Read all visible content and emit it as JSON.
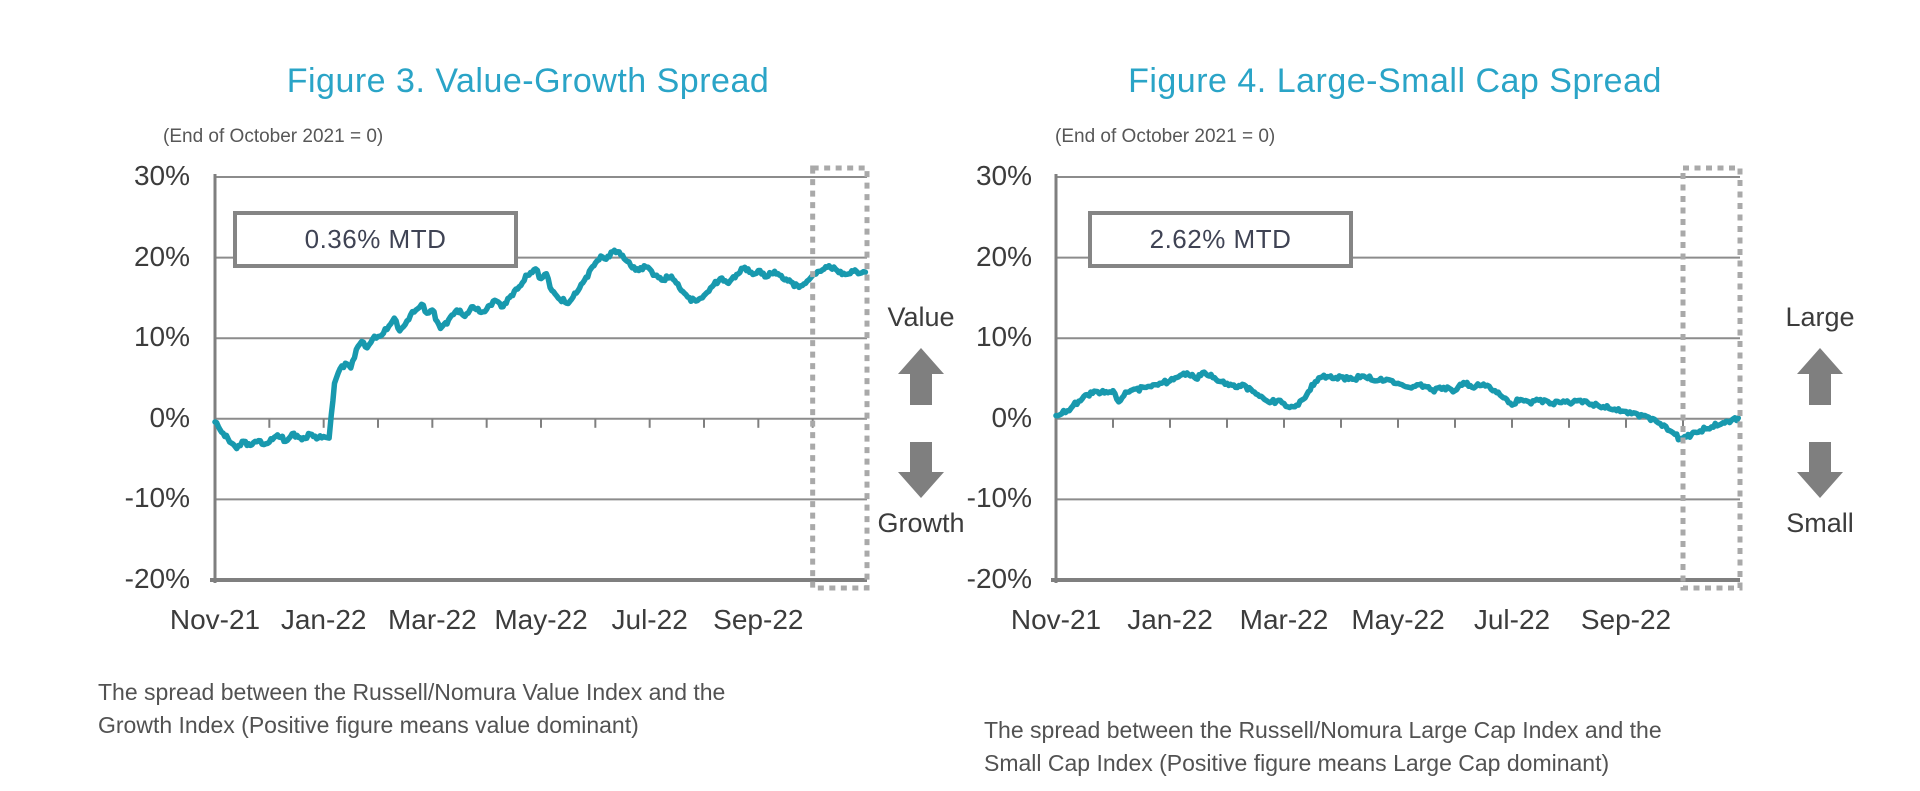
{
  "page": {
    "background": "#ffffff"
  },
  "chart_data": [
    {
      "type": "line",
      "title": "Figure 3. Value-Growth Spread",
      "subtitle": "(End of October 2021 = 0)",
      "annotation": "0.36% MTD",
      "arrow_up_label": "Value",
      "arrow_down_label": "Growth",
      "caption_lines": [
        "The spread between the Russell/Nomura Value Index and the",
        "Growth Index (Positive figure means value dominant)"
      ],
      "ylim": [
        -20,
        30
      ],
      "y_tick_values": [
        30,
        20,
        10,
        0,
        -10,
        -20
      ],
      "y_tick_labels": [
        "30%",
        "20%",
        "10%",
        "0%",
        "-10%",
        "-20%"
      ],
      "x_tick_labels": [
        "Nov-21",
        "Jan-22",
        "Mar-22",
        "May-22",
        "Jul-22",
        "Sep-22"
      ],
      "x_axis_unit": "months since end of October 2021",
      "x_range_months": [
        0,
        12
      ],
      "grid": "horizontal",
      "legend": "none",
      "highlight_window_months": [
        11,
        12
      ],
      "highlight_meaning": "October 2022 month-to-date",
      "line_color": "#1899AE",
      "series": [
        {
          "name": "Value minus Growth cumulative spread (%)",
          "color": "#1899AE",
          "points_month_value": [
            [
              0,
              -0.4
            ],
            [
              0.15,
              -1.8
            ],
            [
              0.3,
              -3.0
            ],
            [
              0.4,
              -3.7
            ],
            [
              0.5,
              -2.8
            ],
            [
              0.65,
              -3.3
            ],
            [
              0.8,
              -2.7
            ],
            [
              0.9,
              -3.2
            ],
            [
              1.0,
              -2.9
            ],
            [
              1.15,
              -2.0
            ],
            [
              1.3,
              -2.8
            ],
            [
              1.45,
              -1.8
            ],
            [
              1.6,
              -2.6
            ],
            [
              1.75,
              -1.9
            ],
            [
              1.9,
              -2.4
            ],
            [
              2.0,
              -2.2
            ],
            [
              2.1,
              -2.4
            ],
            [
              2.14,
              0.5
            ],
            [
              2.2,
              4.4
            ],
            [
              2.3,
              6.2
            ],
            [
              2.4,
              6.9
            ],
            [
              2.5,
              6.3
            ],
            [
              2.6,
              8.6
            ],
            [
              2.7,
              9.6
            ],
            [
              2.8,
              8.8
            ],
            [
              2.9,
              9.9
            ],
            [
              3.0,
              10.2
            ],
            [
              3.1,
              10.6
            ],
            [
              3.2,
              11.5
            ],
            [
              3.3,
              12.5
            ],
            [
              3.4,
              10.9
            ],
            [
              3.5,
              11.7
            ],
            [
              3.6,
              12.9
            ],
            [
              3.7,
              13.5
            ],
            [
              3.8,
              14.2
            ],
            [
              3.9,
              13.1
            ],
            [
              4.0,
              13.5
            ],
            [
              4.15,
              11.2
            ],
            [
              4.3,
              12.3
            ],
            [
              4.45,
              13.5
            ],
            [
              4.6,
              12.7
            ],
            [
              4.75,
              13.9
            ],
            [
              4.9,
              13.2
            ],
            [
              5.0,
              13.6
            ],
            [
              5.15,
              14.7
            ],
            [
              5.3,
              13.9
            ],
            [
              5.45,
              15.3
            ],
            [
              5.6,
              16.4
            ],
            [
              5.75,
              17.8
            ],
            [
              5.9,
              18.6
            ],
            [
              6.0,
              17.4
            ],
            [
              6.1,
              18.0
            ],
            [
              6.2,
              15.9
            ],
            [
              6.35,
              14.8
            ],
            [
              6.5,
              14.3
            ],
            [
              6.65,
              15.6
            ],
            [
              6.8,
              17.2
            ],
            [
              6.95,
              18.9
            ],
            [
              7.0,
              19.3
            ],
            [
              7.1,
              20.2
            ],
            [
              7.2,
              19.8
            ],
            [
              7.35,
              20.9
            ],
            [
              7.5,
              20.3
            ],
            [
              7.65,
              19.0
            ],
            [
              7.8,
              18.4
            ],
            [
              7.9,
              19.0
            ],
            [
              8.0,
              18.6
            ],
            [
              8.1,
              17.8
            ],
            [
              8.25,
              17.2
            ],
            [
              8.4,
              17.7
            ],
            [
              8.55,
              16.2
            ],
            [
              8.7,
              15.1
            ],
            [
              8.85,
              14.6
            ],
            [
              9.0,
              15.3
            ],
            [
              9.15,
              16.4
            ],
            [
              9.3,
              17.4
            ],
            [
              9.45,
              16.8
            ],
            [
              9.6,
              17.9
            ],
            [
              9.75,
              18.8
            ],
            [
              9.9,
              17.9
            ],
            [
              10.0,
              18.4
            ],
            [
              10.15,
              17.6
            ],
            [
              10.3,
              18.3
            ],
            [
              10.45,
              17.4
            ],
            [
              10.6,
              17.0
            ],
            [
              10.75,
              16.3
            ],
            [
              10.9,
              17.1
            ],
            [
              11.0,
              17.8
            ],
            [
              11.15,
              18.3
            ],
            [
              11.3,
              19.0
            ],
            [
              11.45,
              18.4
            ],
            [
              11.6,
              17.9
            ],
            [
              11.75,
              18.3
            ],
            [
              11.9,
              18.1
            ],
            [
              11.97,
              18.2
            ]
          ]
        }
      ]
    },
    {
      "type": "line",
      "title": "Figure 4. Large-Small Cap Spread",
      "subtitle": "(End of October 2021 = 0)",
      "annotation": "2.62% MTD",
      "arrow_up_label": "Large",
      "arrow_down_label": "Small",
      "caption_lines": [
        "The spread between the Russell/Nomura Large Cap Index and the",
        "Small Cap Index (Positive figure means Large Cap dominant)"
      ],
      "ylim": [
        -20,
        30
      ],
      "y_tick_values": [
        30,
        20,
        10,
        0,
        -10,
        -20
      ],
      "y_tick_labels": [
        "30%",
        "20%",
        "10%",
        "0%",
        "-10%",
        "-20%"
      ],
      "x_tick_labels": [
        "Nov-21",
        "Jan-22",
        "Mar-22",
        "May-22",
        "Jul-22",
        "Sep-22"
      ],
      "x_axis_unit": "months since end of October 2021",
      "x_range_months": [
        0,
        12
      ],
      "grid": "horizontal",
      "legend": "none",
      "highlight_window_months": [
        11,
        12
      ],
      "highlight_meaning": "October 2022 month-to-date",
      "line_color": "#1899AE",
      "series": [
        {
          "name": "Large Cap minus Small Cap cumulative spread (%)",
          "color": "#1899AE",
          "points_month_value": [
            [
              0,
              0.4
            ],
            [
              0.2,
              1.0
            ],
            [
              0.4,
              2.2
            ],
            [
              0.55,
              3.0
            ],
            [
              0.7,
              3.4
            ],
            [
              0.85,
              3.2
            ],
            [
              1.0,
              3.5
            ],
            [
              1.1,
              2.1
            ],
            [
              1.25,
              3.3
            ],
            [
              1.4,
              3.7
            ],
            [
              1.55,
              3.9
            ],
            [
              1.7,
              4.2
            ],
            [
              1.85,
              4.4
            ],
            [
              2.0,
              4.7
            ],
            [
              2.15,
              5.2
            ],
            [
              2.3,
              5.7
            ],
            [
              2.45,
              5.0
            ],
            [
              2.6,
              5.8
            ],
            [
              2.75,
              5.1
            ],
            [
              2.9,
              4.6
            ],
            [
              3.0,
              4.4
            ],
            [
              3.15,
              3.9
            ],
            [
              3.3,
              4.2
            ],
            [
              3.45,
              3.4
            ],
            [
              3.6,
              2.8
            ],
            [
              3.75,
              2.0
            ],
            [
              3.9,
              2.3
            ],
            [
              4.0,
              1.9
            ],
            [
              4.1,
              1.4
            ],
            [
              4.25,
              1.7
            ],
            [
              4.4,
              3.0
            ],
            [
              4.55,
              4.6
            ],
            [
              4.7,
              5.4
            ],
            [
              4.85,
              5.0
            ],
            [
              5.0,
              5.2
            ],
            [
              5.2,
              4.9
            ],
            [
              5.4,
              5.3
            ],
            [
              5.6,
              4.7
            ],
            [
              5.8,
              4.9
            ],
            [
              6.0,
              4.4
            ],
            [
              6.2,
              3.9
            ],
            [
              6.4,
              4.3
            ],
            [
              6.6,
              3.6
            ],
            [
              6.8,
              3.9
            ],
            [
              7.0,
              3.5
            ],
            [
              7.15,
              4.5
            ],
            [
              7.3,
              3.9
            ],
            [
              7.5,
              4.3
            ],
            [
              7.7,
              3.5
            ],
            [
              7.85,
              2.6
            ],
            [
              8.0,
              1.7
            ],
            [
              8.15,
              2.4
            ],
            [
              8.3,
              2.1
            ],
            [
              8.5,
              2.4
            ],
            [
              8.7,
              1.9
            ],
            [
              8.9,
              2.2
            ],
            [
              9.0,
              2.0
            ],
            [
              9.2,
              2.3
            ],
            [
              9.4,
              1.8
            ],
            [
              9.6,
              1.5
            ],
            [
              9.8,
              1.2
            ],
            [
              10.0,
              0.9
            ],
            [
              10.2,
              0.6
            ],
            [
              10.4,
              0.2
            ],
            [
              10.6,
              -0.6
            ],
            [
              10.8,
              -1.6
            ],
            [
              10.95,
              -2.5
            ],
            [
              11.0,
              -2.4
            ],
            [
              11.15,
              -1.9
            ],
            [
              11.3,
              -1.5
            ],
            [
              11.5,
              -1.0
            ],
            [
              11.7,
              -0.5
            ],
            [
              11.85,
              -0.2
            ],
            [
              11.97,
              0.1
            ]
          ]
        }
      ]
    }
  ],
  "colors": {
    "title_teal": "#2AA4C7",
    "series_teal": "#1899AE",
    "gridline_gray": "#8C8C8C",
    "axis_gray": "#7F7F7F",
    "dashed_box_gray": "#A9A9A9",
    "arrow_gray": "#7F7F7F",
    "annotation_text": "#3F4354"
  }
}
